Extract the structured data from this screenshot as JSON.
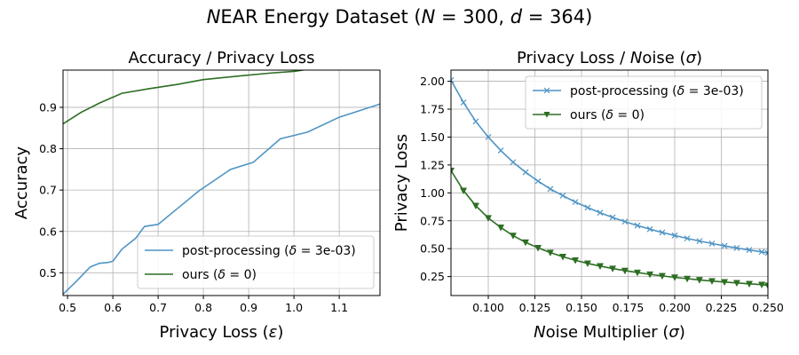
{
  "figure": {
    "suptitle": "NEAR Energy Dataset (N = 300, d = 364)"
  },
  "colors": {
    "post_processing": "#4f94c4",
    "ours": "#2d6e23"
  },
  "chart_data": [
    {
      "type": "line",
      "title": "Accuracy / Privacy Loss",
      "xlabel": "Privacy Loss (ε)",
      "ylabel": "Accuracy",
      "xlim": [
        0.49,
        1.19
      ],
      "ylim": [
        0.445,
        0.99
      ],
      "xticks": [
        0.5,
        0.6,
        0.7,
        0.8,
        0.9,
        1.0,
        1.1
      ],
      "xtick_labels": [
        "0.5",
        "0.6",
        "0.7",
        "0.8",
        "0.9",
        "1.0",
        "1.1"
      ],
      "yticks": [
        0.5,
        0.6,
        0.7,
        0.8,
        0.9
      ],
      "ytick_labels": [
        "0.5",
        "0.6",
        "0.7",
        "0.8",
        "0.9"
      ],
      "legend_loc": "lower right",
      "series": [
        {
          "name": "post-processing (δ = 3e-03)",
          "color": "#4f94c4",
          "marker": "none",
          "x": [
            0.49,
            0.52,
            0.55,
            0.57,
            0.59,
            0.6,
            0.62,
            0.65,
            0.67,
            0.7,
            0.74,
            0.79,
            0.86,
            0.91,
            0.97,
            1.03,
            1.1,
            1.19
          ],
          "y": [
            0.448,
            0.48,
            0.514,
            0.523,
            0.525,
            0.528,
            0.557,
            0.583,
            0.612,
            0.617,
            0.653,
            0.698,
            0.75,
            0.767,
            0.824,
            0.84,
            0.876,
            0.908
          ]
        },
        {
          "name": "ours (δ = 0)",
          "color": "#2d6e23",
          "marker": "none",
          "x": [
            0.49,
            0.53,
            0.57,
            0.62,
            0.68,
            0.74,
            0.8,
            0.88,
            0.95,
            1.0,
            1.02
          ],
          "y": [
            0.86,
            0.888,
            0.91,
            0.934,
            0.945,
            0.955,
            0.967,
            0.976,
            0.983,
            0.987,
            0.99
          ]
        }
      ]
    },
    {
      "type": "line",
      "title": "Privacy Loss / Noise (σ)",
      "xlabel": "Noise Multiplier (σ)",
      "ylabel": "Privacy Loss",
      "xlim": [
        0.08,
        0.25
      ],
      "ylim": [
        0.08,
        2.1
      ],
      "xticks": [
        0.1,
        0.125,
        0.15,
        0.175,
        0.2,
        0.225,
        0.25
      ],
      "xtick_labels": [
        "0.100",
        "0.125",
        "0.150",
        "0.175",
        "0.200",
        "0.225",
        "0.250"
      ],
      "yticks": [
        0.25,
        0.5,
        0.75,
        1.0,
        1.25,
        1.5,
        1.75,
        2.0
      ],
      "ytick_labels": [
        "0.25",
        "0.50",
        "0.75",
        "1.00",
        "1.25",
        "1.50",
        "1.75",
        "2.00"
      ],
      "legend_loc": "upper right",
      "series": [
        {
          "name": "post-processing (δ = 3e-03)",
          "color": "#4f94c4",
          "marker": "x",
          "x": [
            0.08,
            0.0867,
            0.0933,
            0.1,
            0.1067,
            0.1133,
            0.12,
            0.1267,
            0.1333,
            0.14,
            0.1467,
            0.1533,
            0.16,
            0.1667,
            0.1733,
            0.18,
            0.1867,
            0.1933,
            0.2,
            0.2067,
            0.2133,
            0.22,
            0.2267,
            0.2333,
            0.24,
            0.2467,
            0.25
          ],
          "y": [
            2.01,
            1.81,
            1.64,
            1.5,
            1.38,
            1.275,
            1.185,
            1.105,
            1.035,
            0.975,
            0.918,
            0.868,
            0.822,
            0.78,
            0.742,
            0.707,
            0.675,
            0.645,
            0.618,
            0.592,
            0.568,
            0.546,
            0.525,
            0.506,
            0.488,
            0.471,
            0.462
          ]
        },
        {
          "name": "ours (δ = 0)",
          "color": "#2d6e23",
          "marker": "triangle-down",
          "x": [
            0.08,
            0.0867,
            0.0933,
            0.1,
            0.1067,
            0.1133,
            0.12,
            0.1267,
            0.1333,
            0.14,
            0.1467,
            0.1533,
            0.16,
            0.1667,
            0.1733,
            0.18,
            0.1867,
            0.1933,
            0.2,
            0.2067,
            0.2133,
            0.22,
            0.2267,
            0.2333,
            0.24,
            0.2467,
            0.25
          ],
          "y": [
            1.2,
            1.02,
            0.885,
            0.775,
            0.69,
            0.617,
            0.557,
            0.507,
            0.465,
            0.428,
            0.396,
            0.368,
            0.344,
            0.322,
            0.303,
            0.286,
            0.27,
            0.256,
            0.243,
            0.231,
            0.22,
            0.21,
            0.201,
            0.193,
            0.185,
            0.178,
            0.17
          ]
        }
      ]
    }
  ]
}
